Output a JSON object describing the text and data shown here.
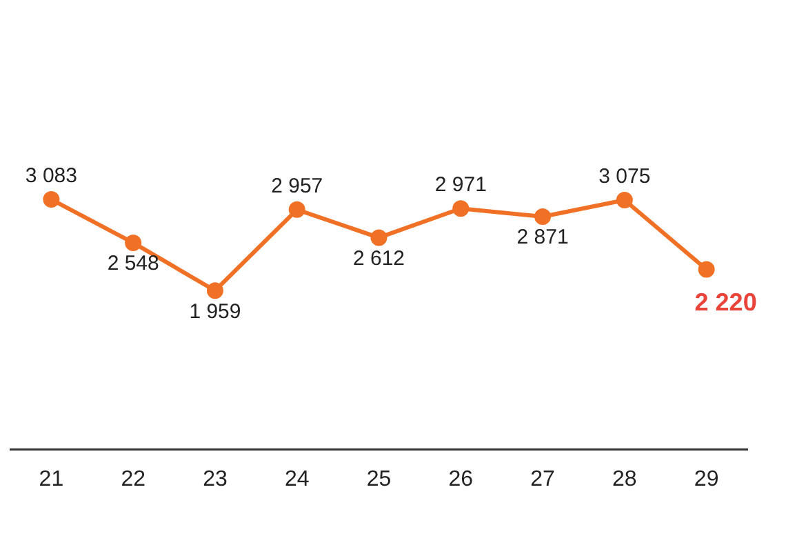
{
  "chart_data": {
    "type": "line",
    "categories": [
      "21",
      "22",
      "23",
      "24",
      "25",
      "26",
      "27",
      "28",
      "29"
    ],
    "series": [
      {
        "color": "#f07126",
        "values": [
          3083,
          2548,
          1959,
          2957,
          2612,
          2971,
          2871,
          3075,
          2220
        ]
      }
    ],
    "data_labels": true,
    "grid": false,
    "legend": false,
    "marker": "circle",
    "line_style": "solid",
    "tick_labels": "x"
  }
}
